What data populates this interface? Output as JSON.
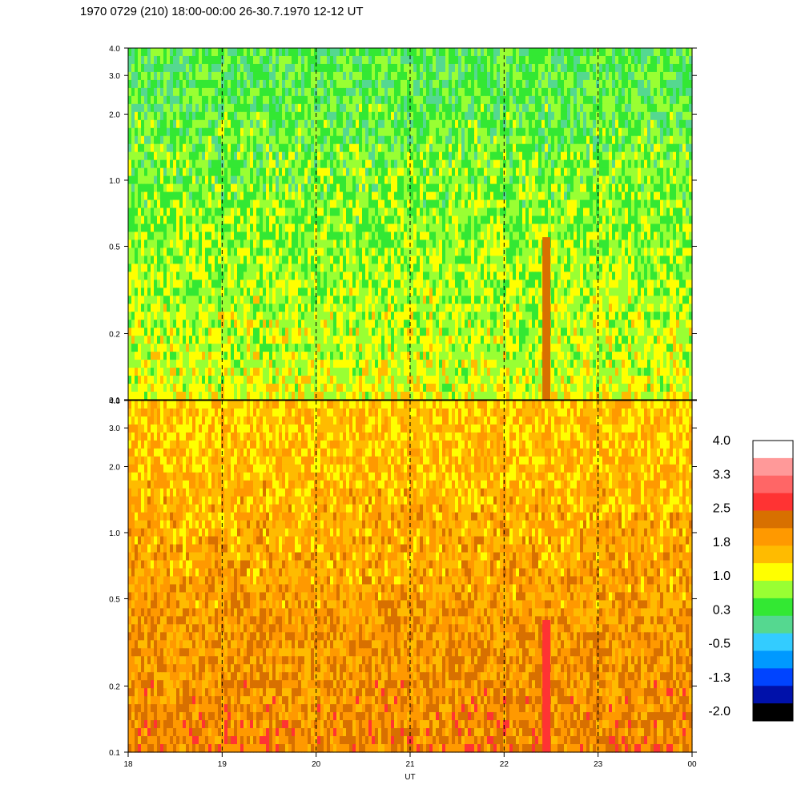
{
  "title": "1970 0729 (210) 18:00-00:00 26-30.7.1970  12-12 UT",
  "chart_data": {
    "type": "heatmap",
    "title": "1970 0729 (210) 18:00-00:00 26-30.7.1970  12-12 UT",
    "xlabel": "UT",
    "x_ticks": [
      "18",
      "19",
      "20",
      "21",
      "22",
      "23",
      "00"
    ],
    "xlim": [
      18,
      24
    ],
    "y_scale": "log",
    "ylim": [
      0.1,
      4.0
    ],
    "y_ticks": [
      "0.1",
      "0.2",
      "0.5",
      "1.0",
      "2.0",
      "3.0",
      "4.0"
    ],
    "y_tick_values": [
      0.1,
      0.2,
      0.5,
      1.0,
      2.0,
      3.0,
      4.0
    ],
    "dashed_hours": [
      19,
      20,
      21,
      22,
      23
    ],
    "panels": [
      {
        "name": "upper",
        "dominant_range": [
          0.0,
          1.2
        ],
        "bursts": [
          {
            "x": 22.45,
            "ymax": 0.55,
            "value": 2.4
          }
        ]
      },
      {
        "name": "lower",
        "dominant_range": [
          0.8,
          2.2
        ],
        "bursts": [
          {
            "x": 22.45,
            "ymax": 0.4,
            "value": 2.6
          }
        ]
      }
    ],
    "colorbar": {
      "labels": [
        "4.0",
        "3.3",
        "2.5",
        "1.8",
        "1.0",
        "0.3",
        "-0.5",
        "-1.3",
        "-2.0"
      ],
      "colors": [
        "#ffffff",
        "#ff9999",
        "#ff6666",
        "#ff3333",
        "#d87000",
        "#ff9900",
        "#ffbb00",
        "#ffff00",
        "#99ff33",
        "#33e833",
        "#55d890",
        "#33ccff",
        "#0099ff",
        "#0044ff",
        "#0011aa",
        "#000000"
      ]
    }
  }
}
